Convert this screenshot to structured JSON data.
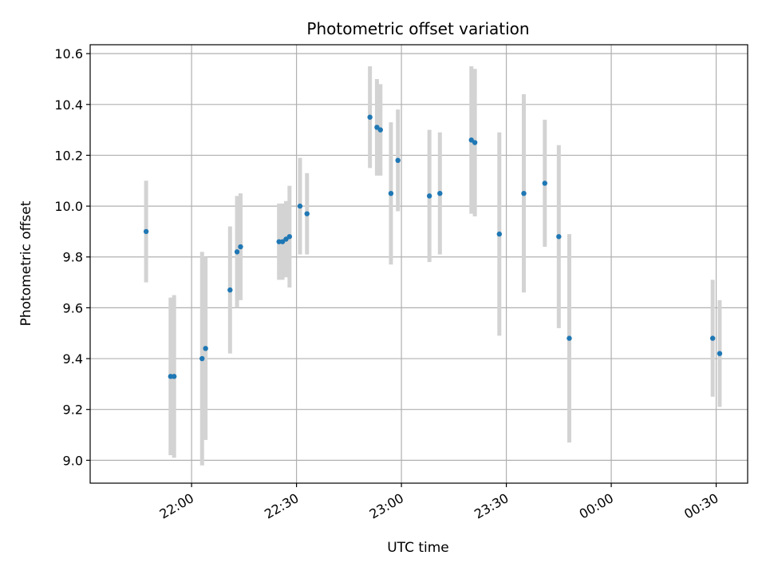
{
  "chart_data": {
    "type": "scatter",
    "title": "Photometric offset variation",
    "xlabel": "UTC time",
    "ylabel": "Photometric offset",
    "x_ticks": [
      "22:00",
      "22:30",
      "23:00",
      "23:30",
      "00:00",
      "00:30"
    ],
    "y_ticks": [
      "9.0",
      "9.2",
      "9.4",
      "9.6",
      "9.8",
      "10.0",
      "10.2",
      "10.4",
      "10.6"
    ],
    "ylim": [
      8.91,
      10.635
    ],
    "xlim": [
      "21:31",
      "00:39"
    ],
    "grid": true,
    "colors": {
      "point": "#1f77b4",
      "errorbar": "#d3d3d3",
      "grid": "#b0b0b0"
    },
    "series": [
      {
        "points": [
          {
            "t": "21:47",
            "y": 9.9,
            "err": 0.2
          },
          {
            "t": "21:54",
            "y": 9.33,
            "err": 0.31
          },
          {
            "t": "21:55",
            "y": 9.33,
            "err": 0.32
          },
          {
            "t": "22:03",
            "y": 9.4,
            "err": 0.42
          },
          {
            "t": "22:04",
            "y": 9.44,
            "err": 0.36
          },
          {
            "t": "22:11",
            "y": 9.67,
            "err": 0.25
          },
          {
            "t": "22:13",
            "y": 9.82,
            "err": 0.22
          },
          {
            "t": "22:14",
            "y": 9.84,
            "err": 0.21
          },
          {
            "t": "22:25",
            "y": 9.86,
            "err": 0.15
          },
          {
            "t": "22:26",
            "y": 9.86,
            "err": 0.15
          },
          {
            "t": "22:27",
            "y": 9.87,
            "err": 0.15
          },
          {
            "t": "22:28",
            "y": 9.88,
            "err": 0.2
          },
          {
            "t": "22:31",
            "y": 10.0,
            "err": 0.19
          },
          {
            "t": "22:33",
            "y": 9.97,
            "err": 0.16
          },
          {
            "t": "22:51",
            "y": 10.35,
            "err": 0.2
          },
          {
            "t": "22:53",
            "y": 10.31,
            "err": 0.19
          },
          {
            "t": "22:54",
            "y": 10.3,
            "err": 0.18
          },
          {
            "t": "22:57",
            "y": 10.05,
            "err": 0.28
          },
          {
            "t": "22:59",
            "y": 10.18,
            "err": 0.2
          },
          {
            "t": "23:08",
            "y": 10.04,
            "err": 0.26
          },
          {
            "t": "23:11",
            "y": 10.05,
            "err": 0.24
          },
          {
            "t": "23:20",
            "y": 10.26,
            "err": 0.29
          },
          {
            "t": "23:21",
            "y": 10.25,
            "err": 0.29
          },
          {
            "t": "23:28",
            "y": 9.89,
            "err": 0.4
          },
          {
            "t": "23:35",
            "y": 10.05,
            "err": 0.39
          },
          {
            "t": "23:41",
            "y": 10.09,
            "err": 0.25
          },
          {
            "t": "23:45",
            "y": 9.88,
            "err": 0.36
          },
          {
            "t": "23:48",
            "y": 9.48,
            "err": 0.41
          },
          {
            "t": "00:29",
            "y": 9.48,
            "err": 0.23
          },
          {
            "t": "00:31",
            "y": 9.42,
            "err": 0.21
          }
        ]
      }
    ]
  }
}
